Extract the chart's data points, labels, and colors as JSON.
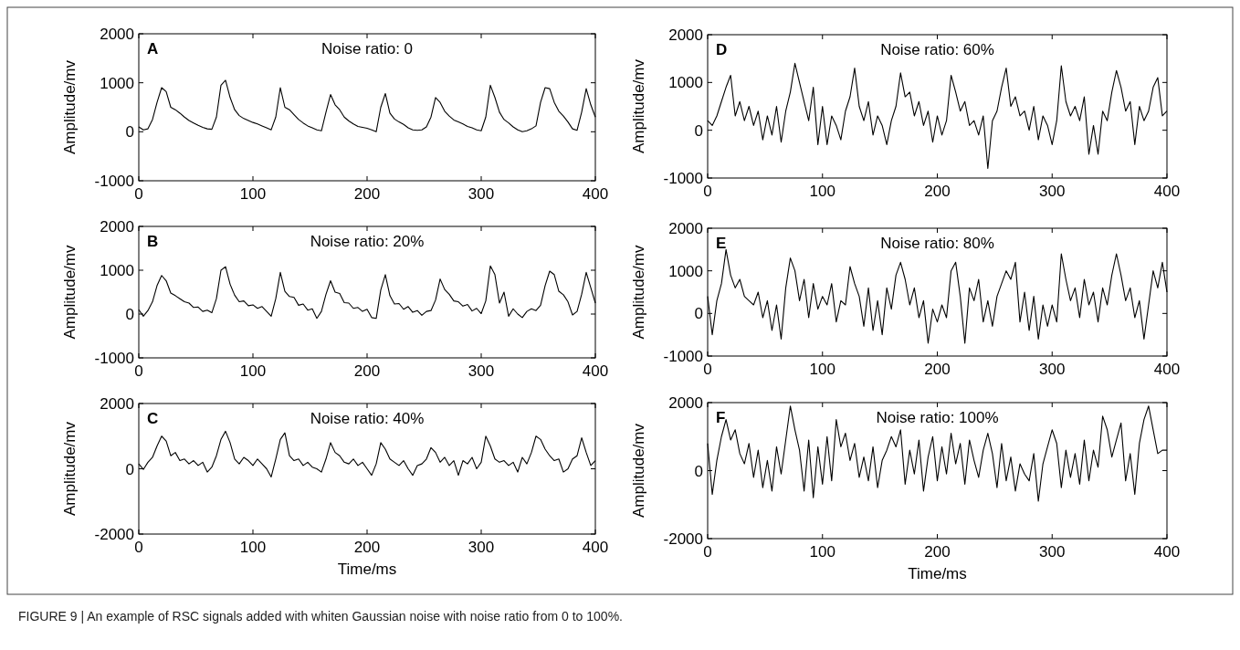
{
  "chart_data": [
    {
      "type": "line",
      "title": "A",
      "subtitle": "Noise ratio: 0",
      "ylabel": "Amplitude/mv",
      "xlim": [
        0,
        400
      ],
      "xticks": [
        0,
        100,
        200,
        300,
        400
      ],
      "ylim": [
        -1000,
        2000
      ],
      "yticks": [
        -1000,
        0,
        1000,
        2000
      ],
      "grid": false,
      "x": [
        0,
        4,
        8,
        12,
        16,
        20,
        24,
        28,
        32,
        36,
        40,
        44,
        48,
        52,
        56,
        60,
        64,
        68,
        72,
        76,
        80,
        84,
        88,
        92,
        96,
        100,
        104,
        108,
        112,
        116,
        120,
        124,
        128,
        132,
        136,
        140,
        144,
        148,
        152,
        156,
        160,
        164,
        168,
        172,
        176,
        180,
        184,
        188,
        192,
        196,
        200,
        204,
        208,
        212,
        216,
        220,
        224,
        228,
        232,
        236,
        240,
        244,
        248,
        252,
        256,
        260,
        264,
        268,
        272,
        276,
        280,
        284,
        288,
        292,
        296,
        300,
        304,
        308,
        312,
        316,
        320,
        324,
        328,
        332,
        336,
        340,
        344,
        348,
        352,
        356,
        360,
        364,
        368,
        372,
        376,
        380,
        384,
        388,
        392,
        396,
        400
      ],
      "series": [
        {
          "color": "#000000",
          "values": [
            100,
            40,
            60,
            250,
            600,
            900,
            820,
            500,
            450,
            380,
            300,
            230,
            180,
            130,
            90,
            60,
            50,
            300,
            950,
            1050,
            700,
            450,
            330,
            270,
            230,
            190,
            160,
            120,
            80,
            40,
            300,
            900,
            500,
            450,
            350,
            250,
            180,
            120,
            80,
            40,
            20,
            400,
            760,
            550,
            450,
            300,
            220,
            160,
            110,
            90,
            70,
            40,
            0,
            500,
            780,
            380,
            260,
            200,
            150,
            80,
            40,
            30,
            40,
            100,
            300,
            700,
            600,
            420,
            320,
            240,
            200,
            160,
            110,
            80,
            40,
            20,
            300,
            950,
            700,
            400,
            250,
            180,
            100,
            40,
            0,
            20,
            60,
            120,
            600,
            900,
            880,
            600,
            420,
            320,
            200,
            60,
            30,
            400,
            880,
            550,
            300
          ]
        }
      ]
    },
    {
      "type": "line",
      "title": "B",
      "subtitle": "Noise ratio: 20%",
      "ylabel": "Amplitude/mv",
      "xlim": [
        0,
        400
      ],
      "xticks": [
        0,
        100,
        200,
        300,
        400
      ],
      "ylim": [
        -1000,
        2000
      ],
      "yticks": [
        -1000,
        0,
        1000,
        2000
      ],
      "grid": false,
      "x": [
        0,
        4,
        8,
        12,
        16,
        20,
        24,
        28,
        32,
        36,
        40,
        44,
        48,
        52,
        56,
        60,
        64,
        68,
        72,
        76,
        80,
        84,
        88,
        92,
        96,
        100,
        104,
        108,
        112,
        116,
        120,
        124,
        128,
        132,
        136,
        140,
        144,
        148,
        152,
        156,
        160,
        164,
        168,
        172,
        176,
        180,
        184,
        188,
        192,
        196,
        200,
        204,
        208,
        212,
        216,
        220,
        224,
        228,
        232,
        236,
        240,
        244,
        248,
        252,
        256,
        260,
        264,
        268,
        272,
        276,
        280,
        284,
        288,
        292,
        296,
        300,
        304,
        308,
        312,
        316,
        320,
        324,
        328,
        332,
        336,
        340,
        344,
        348,
        352,
        356,
        360,
        364,
        368,
        372,
        376,
        380,
        384,
        388,
        392,
        396,
        400
      ],
      "series": [
        {
          "color": "#000000",
          "values": [
            100,
            -50,
            80,
            280,
            650,
            880,
            760,
            480,
            420,
            350,
            280,
            250,
            150,
            160,
            60,
            90,
            30,
            350,
            1000,
            1080,
            680,
            430,
            280,
            300,
            190,
            210,
            130,
            170,
            60,
            -50,
            350,
            950,
            520,
            400,
            380,
            200,
            230,
            90,
            120,
            -100,
            60,
            450,
            760,
            500,
            470,
            260,
            250,
            130,
            150,
            60,
            110,
            -80,
            -100,
            550,
            900,
            420,
            230,
            240,
            110,
            170,
            40,
            80,
            -30,
            60,
            80,
            320,
            800,
            560,
            450,
            300,
            280,
            180,
            220,
            70,
            130,
            10,
            300,
            1100,
            900,
            250,
            500,
            -50,
            120,
            0,
            -80,
            60,
            120,
            80,
            200,
            650,
            980,
            900,
            520,
            440,
            280,
            -20,
            60,
            450,
            950,
            600,
            250
          ]
        }
      ]
    },
    {
      "type": "line",
      "title": "C",
      "subtitle": "Noise ratio: 40%",
      "xlabel": "Time/ms",
      "ylabel": "Amplitude/mv",
      "xlim": [
        0,
        400
      ],
      "xticks": [
        0,
        100,
        200,
        300,
        400
      ],
      "ylim": [
        -2000,
        2000
      ],
      "yticks": [
        -2000,
        0,
        2000
      ],
      "grid": false,
      "x": [
        0,
        4,
        8,
        12,
        16,
        20,
        24,
        28,
        32,
        36,
        40,
        44,
        48,
        52,
        56,
        60,
        64,
        68,
        72,
        76,
        80,
        84,
        88,
        92,
        96,
        100,
        104,
        108,
        112,
        116,
        120,
        124,
        128,
        132,
        136,
        140,
        144,
        148,
        152,
        156,
        160,
        164,
        168,
        172,
        176,
        180,
        184,
        188,
        192,
        196,
        200,
        204,
        208,
        212,
        216,
        220,
        224,
        228,
        232,
        236,
        240,
        244,
        248,
        252,
        256,
        260,
        264,
        268,
        272,
        276,
        280,
        284,
        288,
        292,
        296,
        300,
        304,
        308,
        312,
        316,
        320,
        324,
        328,
        332,
        336,
        340,
        344,
        348,
        352,
        356,
        360,
        364,
        368,
        372,
        376,
        380,
        384,
        388,
        392,
        396,
        400
      ],
      "series": [
        {
          "color": "#000000",
          "values": [
            150,
            -20,
            200,
            350,
            700,
            1000,
            850,
            400,
            500,
            250,
            300,
            150,
            250,
            100,
            200,
            -100,
            50,
            400,
            900,
            1150,
            800,
            300,
            150,
            350,
            250,
            100,
            300,
            150,
            0,
            -250,
            300,
            900,
            1100,
            400,
            250,
            300,
            100,
            200,
            50,
            0,
            -100,
            300,
            800,
            500,
            400,
            200,
            150,
            300,
            100,
            200,
            0,
            -200,
            150,
            800,
            600,
            300,
            200,
            100,
            250,
            0,
            -200,
            100,
            150,
            300,
            650,
            500,
            200,
            350,
            100,
            250,
            -200,
            250,
            150,
            350,
            0,
            200,
            1000,
            700,
            300,
            200,
            250,
            100,
            200,
            -100,
            350,
            150,
            500,
            1000,
            900,
            600,
            400,
            250,
            300,
            -100,
            0,
            300,
            400,
            950,
            500,
            100,
            250
          ]
        }
      ]
    },
    {
      "type": "line",
      "title": "D",
      "subtitle": "Noise ratio: 60%",
      "ylabel": "Amplitude/mv",
      "xlim": [
        0,
        400
      ],
      "xticks": [
        0,
        100,
        200,
        300,
        400
      ],
      "ylim": [
        -1000,
        2000
      ],
      "yticks": [
        -1000,
        0,
        1000,
        2000
      ],
      "grid": false,
      "x": [
        0,
        4,
        8,
        12,
        16,
        20,
        24,
        28,
        32,
        36,
        40,
        44,
        48,
        52,
        56,
        60,
        64,
        68,
        72,
        76,
        80,
        84,
        88,
        92,
        96,
        100,
        104,
        108,
        112,
        116,
        120,
        124,
        128,
        132,
        136,
        140,
        144,
        148,
        152,
        156,
        160,
        164,
        168,
        172,
        176,
        180,
        184,
        188,
        192,
        196,
        200,
        204,
        208,
        212,
        216,
        220,
        224,
        228,
        232,
        236,
        240,
        244,
        248,
        252,
        256,
        260,
        264,
        268,
        272,
        276,
        280,
        284,
        288,
        292,
        296,
        300,
        304,
        308,
        312,
        316,
        320,
        324,
        328,
        332,
        336,
        340,
        344,
        348,
        352,
        356,
        360,
        364,
        368,
        372,
        376,
        380,
        384,
        388,
        392,
        396,
        400
      ],
      "series": [
        {
          "color": "#000000",
          "values": [
            200,
            100,
            300,
            600,
            900,
            1150,
            300,
            600,
            200,
            500,
            100,
            400,
            -200,
            300,
            -100,
            500,
            -250,
            400,
            800,
            1400,
            1000,
            600,
            200,
            900,
            -300,
            500,
            -300,
            300,
            100,
            -200,
            400,
            700,
            1300,
            500,
            200,
            600,
            -100,
            300,
            100,
            -300,
            200,
            500,
            1200,
            700,
            800,
            300,
            600,
            100,
            400,
            -250,
            300,
            -100,
            200,
            1150,
            800,
            400,
            600,
            100,
            200,
            -100,
            300,
            -800,
            200,
            400,
            900,
            1300,
            500,
            700,
            300,
            400,
            0,
            500,
            -200,
            300,
            100,
            -300,
            200,
            1350,
            600,
            300,
            500,
            200,
            700,
            -500,
            100,
            -500,
            400,
            200,
            800,
            1250,
            900,
            400,
            600,
            -300,
            500,
            200,
            400,
            900,
            1100,
            300,
            400
          ]
        }
      ]
    },
    {
      "type": "line",
      "title": "E",
      "subtitle": "Noise ratio: 80%",
      "ylabel": "Amplitude/mv",
      "xlim": [
        0,
        400
      ],
      "xticks": [
        0,
        100,
        200,
        300,
        400
      ],
      "ylim": [
        -1000,
        2000
      ],
      "yticks": [
        -1000,
        0,
        1000,
        2000
      ],
      "grid": false,
      "x": [
        0,
        4,
        8,
        12,
        16,
        20,
        24,
        28,
        32,
        36,
        40,
        44,
        48,
        52,
        56,
        60,
        64,
        68,
        72,
        76,
        80,
        84,
        88,
        92,
        96,
        100,
        104,
        108,
        112,
        116,
        120,
        124,
        128,
        132,
        136,
        140,
        144,
        148,
        152,
        156,
        160,
        164,
        168,
        172,
        176,
        180,
        184,
        188,
        192,
        196,
        200,
        204,
        208,
        212,
        216,
        220,
        224,
        228,
        232,
        236,
        240,
        244,
        248,
        252,
        256,
        260,
        264,
        268,
        272,
        276,
        280,
        284,
        288,
        292,
        296,
        300,
        304,
        308,
        312,
        316,
        320,
        324,
        328,
        332,
        336,
        340,
        344,
        348,
        352,
        356,
        360,
        364,
        368,
        372,
        376,
        380,
        384,
        388,
        392,
        396,
        400
      ],
      "series": [
        {
          "color": "#000000",
          "values": [
            400,
            -500,
            300,
            700,
            1500,
            900,
            600,
            800,
            400,
            300,
            200,
            500,
            -100,
            300,
            -400,
            200,
            -600,
            600,
            1300,
            1000,
            300,
            800,
            -100,
            700,
            100,
            400,
            200,
            700,
            -200,
            300,
            200,
            1100,
            700,
            400,
            -300,
            600,
            -400,
            300,
            -500,
            600,
            100,
            900,
            1200,
            800,
            200,
            600,
            -100,
            300,
            -700,
            100,
            -200,
            200,
            -100,
            1000,
            1200,
            400,
            -700,
            600,
            300,
            800,
            -200,
            300,
            -300,
            400,
            700,
            1000,
            800,
            1200,
            -200,
            500,
            -400,
            400,
            -600,
            200,
            -300,
            200,
            -200,
            1400,
            800,
            300,
            600,
            -100,
            800,
            200,
            500,
            -200,
            600,
            200,
            900,
            1400,
            900,
            300,
            600,
            -100,
            300,
            -600,
            200,
            1000,
            600,
            1200,
            500
          ]
        }
      ]
    },
    {
      "type": "line",
      "title": "F",
      "subtitle": "Noise ratio: 100%",
      "xlabel": "Time/ms",
      "ylabel": "Amplitude/mv",
      "xlim": [
        0,
        400
      ],
      "xticks": [
        0,
        100,
        200,
        300,
        400
      ],
      "ylim": [
        -2000,
        2000
      ],
      "yticks": [
        -2000,
        0,
        2000
      ],
      "grid": false,
      "annotations": [
        "FIGURE 9 | An example of RSC signals added with whiten Gaussian noise with noise ratio from 0 to 100%."
      ],
      "x": [
        0,
        4,
        8,
        12,
        16,
        20,
        24,
        28,
        32,
        36,
        40,
        44,
        48,
        52,
        56,
        60,
        64,
        68,
        72,
        76,
        80,
        84,
        88,
        92,
        96,
        100,
        104,
        108,
        112,
        116,
        120,
        124,
        128,
        132,
        136,
        140,
        144,
        148,
        152,
        156,
        160,
        164,
        168,
        172,
        176,
        180,
        184,
        188,
        192,
        196,
        200,
        204,
        208,
        212,
        216,
        220,
        224,
        228,
        232,
        236,
        240,
        244,
        248,
        252,
        256,
        260,
        264,
        268,
        272,
        276,
        280,
        284,
        288,
        292,
        296,
        300,
        304,
        308,
        312,
        316,
        320,
        324,
        328,
        332,
        336,
        340,
        344,
        348,
        352,
        356,
        360,
        364,
        368,
        372,
        376,
        380,
        384,
        388,
        392,
        396,
        400
      ],
      "series": [
        {
          "color": "#000000",
          "values": [
            800,
            -700,
            300,
            1000,
            1500,
            900,
            1200,
            500,
            200,
            800,
            -200,
            600,
            -500,
            300,
            -600,
            700,
            -100,
            900,
            1900,
            1200,
            600,
            -600,
            900,
            -800,
            700,
            -400,
            1000,
            -300,
            1500,
            700,
            1100,
            300,
            800,
            -200,
            400,
            -300,
            700,
            -500,
            300,
            600,
            1000,
            700,
            1200,
            -400,
            600,
            -100,
            900,
            -600,
            400,
            1000,
            -300,
            700,
            -100,
            1100,
            200,
            800,
            -400,
            900,
            300,
            -200,
            600,
            1100,
            500,
            -500,
            800,
            -300,
            400,
            -600,
            200,
            -100,
            -300,
            500,
            -900,
            200,
            700,
            1200,
            800,
            -500,
            600,
            -200,
            500,
            -400,
            900,
            -300,
            600,
            100,
            1600,
            1200,
            400,
            900,
            1400,
            -300,
            500,
            -700,
            800,
            1500,
            1900,
            1200,
            500,
            600,
            600
          ]
        }
      ]
    }
  ]
}
